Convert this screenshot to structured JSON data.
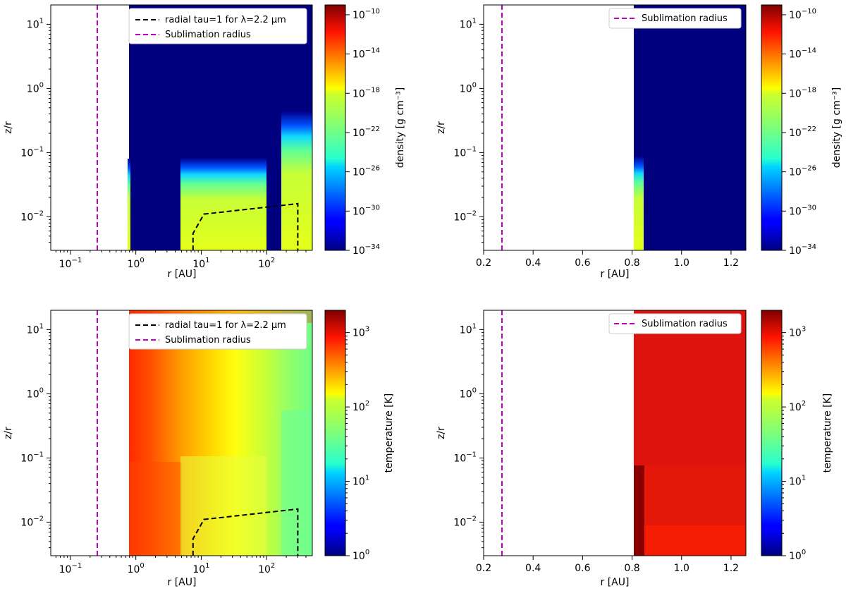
{
  "figure": {
    "panels": [
      {
        "id": "top-left",
        "quantity": "density",
        "xscale": "log",
        "xlabel": "r [AU]",
        "ylabel": "z/r",
        "xlim": [
          0.05,
          500
        ],
        "ylim": [
          0.003,
          20
        ],
        "xticks": [
          {
            "v": 0.1,
            "base": "10",
            "exp": "−1"
          },
          {
            "v": 1,
            "base": "10",
            "exp": "0"
          },
          {
            "v": 10,
            "base": "10",
            "exp": "1"
          },
          {
            "v": 100,
            "base": "10",
            "exp": "2"
          }
        ],
        "yticks": [
          {
            "v": 0.01,
            "base": "10",
            "exp": "−2"
          },
          {
            "v": 0.1,
            "base": "10",
            "exp": "−1"
          },
          {
            "v": 1,
            "base": "10",
            "exp": "0"
          },
          {
            "v": 10,
            "base": "10",
            "exp": "1"
          }
        ],
        "sublimation_radius": 0.26,
        "legend": [
          "radial tau=1 for λ=2.2 µm",
          "Sublimation radius"
        ],
        "tau_curve": {
          "r": [
            7.5,
            7.5,
            11,
            300,
            300
          ],
          "z": [
            0.003,
            0.0055,
            0.011,
            0.016,
            0.003
          ]
        },
        "colorbar": {
          "label": "density [g cm⁻³]",
          "min_exp": -34,
          "max_exp": -9,
          "ticks": [
            -34,
            -30,
            -26,
            -22,
            -18,
            -14,
            -10
          ]
        }
      },
      {
        "id": "top-right",
        "quantity": "density",
        "xscale": "linear",
        "xlabel": "r [AU]",
        "ylabel": "z/r",
        "xlim": [
          0.2,
          1.26
        ],
        "ylim": [
          0.003,
          20
        ],
        "xticks": [
          "0.2",
          "0.4",
          "0.6",
          "0.8",
          "1.0",
          "1.2"
        ],
        "yticks": [
          {
            "v": 0.01,
            "base": "10",
            "exp": "−2"
          },
          {
            "v": 0.1,
            "base": "10",
            "exp": "−1"
          },
          {
            "v": 1,
            "base": "10",
            "exp": "0"
          },
          {
            "v": 10,
            "base": "10",
            "exp": "1"
          }
        ],
        "sublimation_radius": 0.26,
        "legend": [
          "Sublimation radius"
        ],
        "colorbar": {
          "label": "density [g cm⁻³]",
          "min_exp": -34,
          "max_exp": -9,
          "ticks": [
            -34,
            -30,
            -26,
            -22,
            -18,
            -14,
            -10
          ]
        }
      },
      {
        "id": "bottom-left",
        "quantity": "temperature",
        "xscale": "log",
        "xlabel": "r [AU]",
        "ylabel": "z/r",
        "xlim": [
          0.05,
          500
        ],
        "ylim": [
          0.003,
          20
        ],
        "xticks": [
          {
            "v": 0.1,
            "base": "10",
            "exp": "−1"
          },
          {
            "v": 1,
            "base": "10",
            "exp": "0"
          },
          {
            "v": 10,
            "base": "10",
            "exp": "1"
          },
          {
            "v": 100,
            "base": "10",
            "exp": "2"
          }
        ],
        "yticks": [
          {
            "v": 0.01,
            "base": "10",
            "exp": "−2"
          },
          {
            "v": 0.1,
            "base": "10",
            "exp": "−1"
          },
          {
            "v": 1,
            "base": "10",
            "exp": "0"
          },
          {
            "v": 10,
            "base": "10",
            "exp": "1"
          }
        ],
        "sublimation_radius": 0.26,
        "legend": [
          "radial tau=1 for λ=2.2 µm",
          "Sublimation radius"
        ],
        "tau_curve": {
          "r": [
            7.5,
            7.5,
            11,
            300,
            300
          ],
          "z": [
            0.003,
            0.0055,
            0.011,
            0.016,
            0.003
          ]
        },
        "colorbar": {
          "label": "temperature [K]",
          "min_exp": 0,
          "max_exp": 3.3,
          "ticks": [
            0,
            1,
            2,
            3
          ]
        }
      },
      {
        "id": "bottom-right",
        "quantity": "temperature",
        "xscale": "linear",
        "xlabel": "r [AU]",
        "ylabel": "z/r",
        "xlim": [
          0.2,
          1.26
        ],
        "ylim": [
          0.003,
          20
        ],
        "xticks": [
          "0.2",
          "0.4",
          "0.6",
          "0.8",
          "1.0",
          "1.2"
        ],
        "yticks": [
          {
            "v": 0.01,
            "base": "10",
            "exp": "−2"
          },
          {
            "v": 0.1,
            "base": "10",
            "exp": "−1"
          },
          {
            "v": 1,
            "base": "10",
            "exp": "0"
          },
          {
            "v": 10,
            "base": "10",
            "exp": "1"
          }
        ],
        "sublimation_radius": 0.26,
        "legend": [
          "Sublimation radius"
        ],
        "colorbar": {
          "label": "temperature [K]",
          "min_exp": 0,
          "max_exp": 3.3,
          "ticks": [
            0,
            1,
            2,
            3
          ]
        }
      }
    ]
  },
  "chart_data": [
    {
      "type": "heatmap",
      "title": "",
      "xlabel": "r [AU]",
      "ylabel": "z/r",
      "xscale": "log",
      "yscale": "log",
      "xlim": [
        0.05,
        500
      ],
      "ylim": [
        0.003,
        20
      ],
      "colorbar_label": "density [g cm⁻³]",
      "colorbar_range": [
        "1e-34",
        "1e-9"
      ],
      "regions": [
        {
          "r_range": [
            0.8,
            0.85
          ],
          "value": "1e-20 near midplane, 1e-34 above z/r=0.07"
        },
        {
          "r_range": [
            5,
            110
          ],
          "value": "~1e-18 below z/r≈0.07, 1e-34 above"
        },
        {
          "r_range": [
            190,
            500
          ],
          "value": "~1e-18 below z/r≈0.35, 1e-34 above"
        }
      ],
      "series": [
        {
          "name": "radial tau=1 for λ=2.2 µm",
          "x": [
            7.5,
            7.5,
            11,
            300,
            300
          ],
          "y": [
            0.003,
            0.0055,
            0.011,
            0.016,
            0.003
          ]
        },
        {
          "name": "Sublimation radius",
          "x": [
            0.26,
            0.26
          ],
          "y": [
            0.003,
            20
          ]
        }
      ]
    },
    {
      "type": "heatmap",
      "title": "",
      "xlabel": "r [AU]",
      "ylabel": "z/r",
      "xscale": "linear",
      "yscale": "log",
      "xlim": [
        0.2,
        1.26
      ],
      "ylim": [
        0.003,
        20
      ],
      "colorbar_label": "density [g cm⁻³]",
      "colorbar_range": [
        "1e-34",
        "1e-9"
      ],
      "regions": [
        {
          "r_range": [
            0.8,
            0.84
          ],
          "value": "~1e-18 below z/r≈0.07, 1e-34 above"
        },
        {
          "r_range": [
            0.84,
            1.26
          ],
          "value": "1e-34"
        }
      ],
      "series": [
        {
          "name": "Sublimation radius",
          "x": [
            0.26,
            0.26
          ],
          "y": [
            0.003,
            20
          ]
        }
      ]
    },
    {
      "type": "heatmap",
      "title": "",
      "xlabel": "r [AU]",
      "ylabel": "z/r",
      "xscale": "log",
      "yscale": "log",
      "xlim": [
        0.05,
        500
      ],
      "ylim": [
        0.003,
        20
      ],
      "colorbar_label": "temperature [K]",
      "colorbar_range": [
        1,
        2000
      ],
      "regions": [
        {
          "r_range": [
            0.8,
            1.5
          ],
          "value": "~1000 K"
        },
        {
          "r_range": [
            10,
            100
          ],
          "value": "~100 K"
        },
        {
          "r_range": [
            200,
            500
          ],
          "value": "~40 K"
        }
      ],
      "series": [
        {
          "name": "radial tau=1 for λ=2.2 µm",
          "x": [
            7.5,
            7.5,
            11,
            300,
            300
          ],
          "y": [
            0.003,
            0.0055,
            0.011,
            0.016,
            0.003
          ]
        },
        {
          "name": "Sublimation radius",
          "x": [
            0.26,
            0.26
          ],
          "y": [
            0.003,
            20
          ]
        }
      ]
    },
    {
      "type": "heatmap",
      "title": "",
      "xlabel": "r [AU]",
      "ylabel": "z/r",
      "xscale": "linear",
      "yscale": "log",
      "xlim": [
        0.2,
        1.26
      ],
      "ylim": [
        0.003,
        20
      ],
      "colorbar_label": "temperature [K]",
      "colorbar_range": [
        1,
        2000
      ],
      "regions": [
        {
          "r_range": [
            0.8,
            0.84
          ],
          "value": "~1500 K below z/r=0.08"
        },
        {
          "r_range": [
            0.8,
            1.26
          ],
          "value": "~1000 K"
        }
      ],
      "series": [
        {
          "name": "Sublimation radius",
          "x": [
            0.26,
            0.26
          ],
          "y": [
            0.003,
            20
          ]
        }
      ]
    }
  ]
}
